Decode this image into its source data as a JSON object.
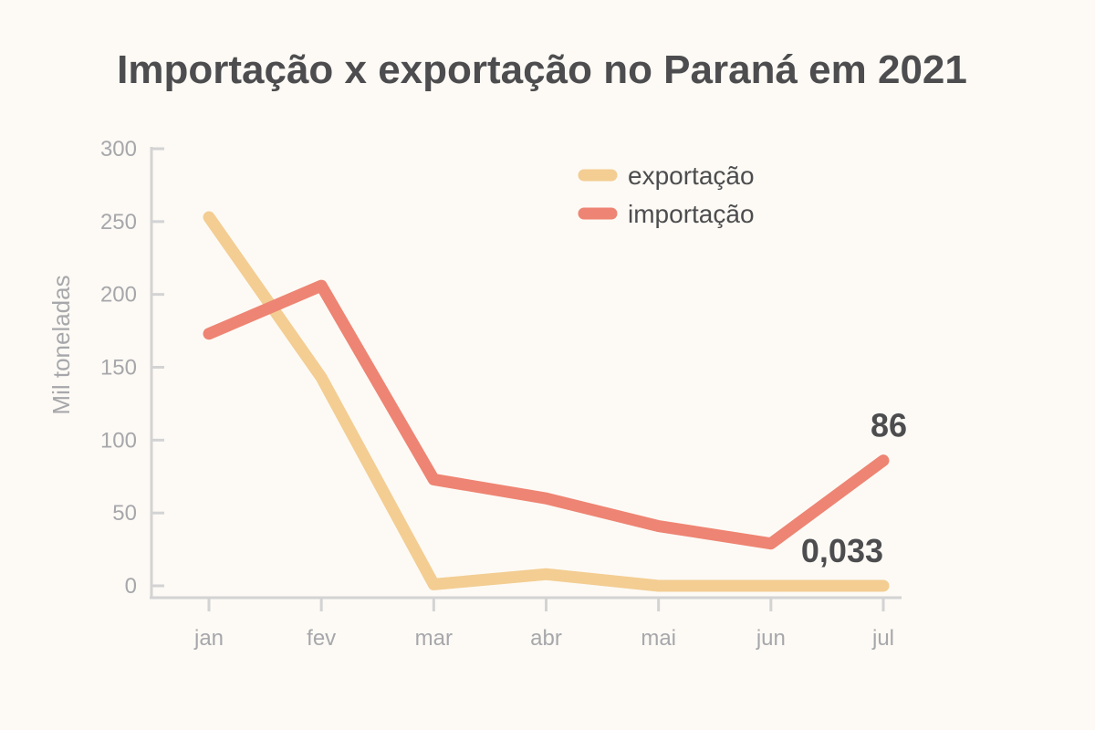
{
  "chart_data": {
    "type": "line",
    "title": "Importação x exportação no Paraná em 2021",
    "ylabel": "Mil toneladas",
    "xlabel": "",
    "categories": [
      "jan",
      "fev",
      "mar",
      "abr",
      "mai",
      "jun",
      "jul"
    ],
    "ylim": [
      0,
      300
    ],
    "yticks": [
      0,
      50,
      100,
      150,
      200,
      250,
      300
    ],
    "grid": false,
    "legend_position": "top-right",
    "series": [
      {
        "name": "exportação",
        "color": "#f3cd92",
        "values": [
          253,
          143,
          1,
          8,
          0,
          0,
          0.033
        ],
        "end_label": "0,033"
      },
      {
        "name": "importação",
        "color": "#ee8473",
        "values": [
          173,
          206,
          73,
          60,
          41,
          29,
          86
        ],
        "end_label": "86"
      }
    ],
    "axis_color": "#d3d3d4"
  }
}
